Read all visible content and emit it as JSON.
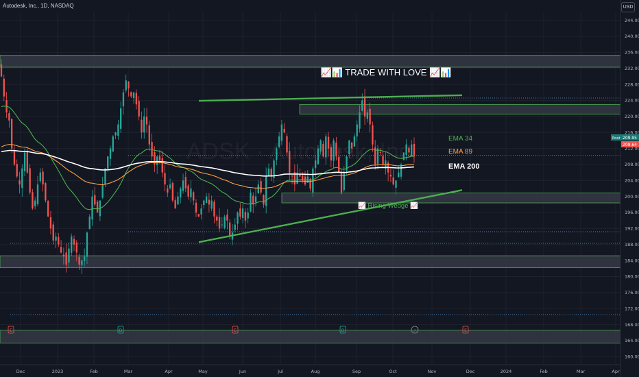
{
  "header": {
    "symbol_line": "Autodesk, Inc., 1D, NASDAQ",
    "currency": "USD"
  },
  "colors": {
    "background": "#131722",
    "up": "#26a69a",
    "down": "#ef5350",
    "ema34": "#4caf50",
    "ema89": "#ff9f43",
    "ema200": "#ffffff",
    "zone_fill": "#3a3d4a",
    "zone_border": "#4caf50",
    "wedge": "#4caf50"
  },
  "chart_data": {
    "type": "candlestick",
    "title": "📈📊 TRADE WITH LOVE 📈📊",
    "watermark": "ADSK · Autodesk, Inc.",
    "ylim": [
      158,
      246
    ],
    "y_ticks": [
      244,
      240,
      236,
      232,
      228,
      224,
      220,
      216,
      212,
      208,
      204,
      200,
      196,
      192,
      188,
      184,
      180,
      176,
      172,
      168,
      164,
      160
    ],
    "x_ticks": [
      "Dec",
      "2023",
      "Feb",
      "Mar",
      "Apr",
      "May",
      "Jun",
      "Jul",
      "Aug",
      "Sep",
      "Oct",
      "Nov",
      "Dec",
      "2024",
      "Feb",
      "Mar",
      "Apr"
    ],
    "price_labels": [
      {
        "label": "Post",
        "value": "209.95"
      },
      {
        "value": "209.64"
      }
    ],
    "ema_labels": [
      {
        "name": "EMA 34",
        "color": "#4caf50"
      },
      {
        "name": "EMA 89",
        "color": "#ff9f43"
      },
      {
        "name": "EMA 200",
        "color": "#ffffff"
      }
    ],
    "pattern_label": "📈 Rising Wedge 📈",
    "zones": [
      {
        "low": 232.3,
        "high": 235.3
      },
      {
        "low": 220.6,
        "high": 223.0
      },
      {
        "low": 198.4,
        "high": 200.9
      },
      {
        "low": 182.2,
        "high": 185.2
      },
      {
        "low": 163.4,
        "high": 166.6
      }
    ],
    "dotted_levels": [
      {
        "price": 224.6,
        "from": "Sep"
      },
      {
        "price": 210.3,
        "from": "Mar"
      },
      {
        "price": 191.2,
        "from": "Mar"
      },
      {
        "price": 188.3,
        "from": "Nov '22"
      },
      {
        "price": 170.5,
        "from": "Nov '22"
      }
    ],
    "wedge_lines": [
      {
        "from": [
          "May",
          223.9
        ],
        "to": [
          "Dec",
          225.3
        ]
      },
      {
        "from": [
          "May",
          188.6
        ],
        "to": [
          "Dec",
          201.6
        ]
      }
    ],
    "event_markers": [
      "E",
      "D",
      "E",
      "D",
      "⚡",
      "E"
    ],
    "closes": [
      230,
      225,
      221,
      219,
      212,
      208,
      205,
      203,
      207,
      211,
      206,
      201,
      197,
      199,
      203,
      206,
      203,
      199,
      195,
      192,
      189,
      190,
      188,
      186,
      185,
      183,
      187,
      190,
      188,
      186,
      183,
      184,
      185,
      191,
      195,
      200,
      198,
      196,
      199,
      203,
      207,
      210,
      212,
      215,
      216,
      218,
      222,
      226,
      229,
      227,
      225,
      226,
      223,
      220,
      216,
      220,
      218,
      213,
      210,
      208,
      210,
      209,
      206,
      203,
      201,
      203,
      199,
      197,
      200,
      202,
      204,
      202,
      200,
      202,
      199,
      196,
      195,
      197,
      199,
      200,
      198,
      199,
      195,
      194,
      192,
      193,
      195,
      194,
      190,
      191,
      193,
      196,
      195,
      197,
      194,
      196,
      201,
      198,
      200,
      203,
      201,
      198,
      205,
      207,
      205,
      209,
      212,
      215,
      218,
      216,
      211,
      206,
      205,
      203,
      206,
      205,
      204,
      203,
      205,
      202,
      207,
      209,
      212,
      214,
      210,
      215,
      212,
      209,
      214,
      210,
      206,
      201,
      206,
      210,
      214,
      212,
      215,
      218,
      221,
      224,
      220,
      221,
      218,
      213,
      208,
      212,
      211,
      208,
      209,
      206,
      205,
      203,
      204,
      206,
      208,
      211,
      213,
      211,
      213,
      210
    ]
  }
}
